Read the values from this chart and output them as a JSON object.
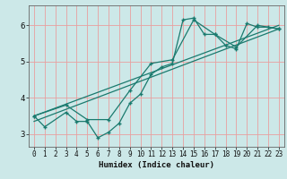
{
  "xlabel": "Humidex (Indice chaleur)",
  "bg_color": "#cce8e8",
  "grid_color": "#e8a0a0",
  "line_color": "#1a7a6e",
  "xlim": [
    -0.5,
    23.5
  ],
  "ylim": [
    2.65,
    6.55
  ],
  "yticks": [
    3,
    4,
    5,
    6
  ],
  "xticks": [
    0,
    1,
    2,
    3,
    4,
    5,
    6,
    7,
    8,
    9,
    10,
    11,
    12,
    13,
    14,
    15,
    16,
    17,
    18,
    19,
    20,
    21,
    22,
    23
  ],
  "curve1_x": [
    0,
    1,
    3,
    4,
    5,
    6,
    7,
    8,
    9,
    10,
    11,
    12,
    13,
    14,
    15,
    16,
    17,
    18,
    19,
    20,
    21,
    22,
    23
  ],
  "curve1_y": [
    3.5,
    3.2,
    3.6,
    3.35,
    3.35,
    2.9,
    3.05,
    3.3,
    3.85,
    4.1,
    4.65,
    4.85,
    4.95,
    6.15,
    6.2,
    5.75,
    5.75,
    5.45,
    5.35,
    6.05,
    5.95,
    5.95,
    5.9
  ],
  "curve2_x": [
    0,
    3,
    5,
    7,
    9,
    11,
    13,
    15,
    17,
    19,
    21,
    23
  ],
  "curve2_y": [
    3.5,
    3.8,
    3.4,
    3.4,
    4.2,
    4.95,
    5.05,
    6.15,
    5.75,
    5.4,
    6.0,
    5.9
  ],
  "line1_x": [
    0,
    23
  ],
  "line1_y": [
    3.5,
    6.0
  ],
  "line2_x": [
    0,
    23
  ],
  "line2_y": [
    3.35,
    5.9
  ]
}
